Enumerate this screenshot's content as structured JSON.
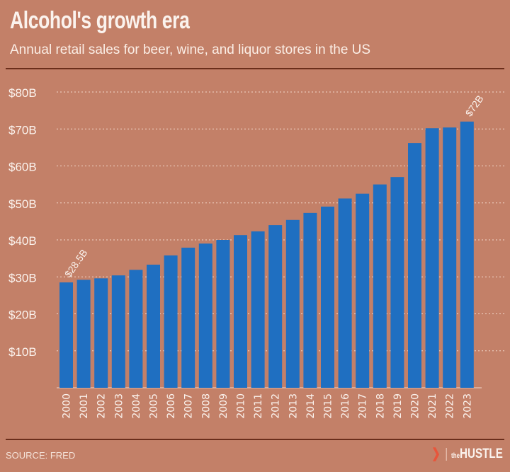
{
  "chart_data": {
    "type": "bar",
    "title": "Alcohol's growth era",
    "subtitle": "Annual retail sales for beer, wine, and liquor stores in the US",
    "categories": [
      "2000",
      "2001",
      "2002",
      "2003",
      "2004",
      "2005",
      "2006",
      "2007",
      "2008",
      "2009",
      "2010",
      "2011",
      "2012",
      "2013",
      "2014",
      "2015",
      "2016",
      "2017",
      "2018",
      "2019",
      "2020",
      "2021",
      "2022",
      "2023"
    ],
    "values": [
      28.5,
      29.2,
      29.6,
      30.4,
      31.9,
      33.3,
      35.8,
      37.9,
      39.0,
      40.0,
      41.3,
      42.3,
      44.0,
      45.4,
      47.3,
      49.0,
      51.2,
      52.5,
      55.0,
      57.0,
      66.2,
      70.2,
      70.4,
      72.0
    ],
    "unit": "billion USD",
    "ylim": [
      0,
      80
    ],
    "yticks": [
      10,
      20,
      30,
      40,
      50,
      60,
      70,
      80
    ],
    "ytick_labels": [
      "$10B",
      "$20B",
      "$30B",
      "$40B",
      "$50B",
      "$60B",
      "$70B",
      "$80B"
    ],
    "grid": true,
    "annotations": [
      {
        "category": "2000",
        "label": "$28.5B"
      },
      {
        "category": "2023",
        "label": "$72B"
      }
    ],
    "bar_color": "#1f6fc1",
    "background_color": "#c38068"
  },
  "source": "SOURCE: FRED",
  "logo": {
    "prefix": "the",
    "name": "HUSTLE"
  }
}
